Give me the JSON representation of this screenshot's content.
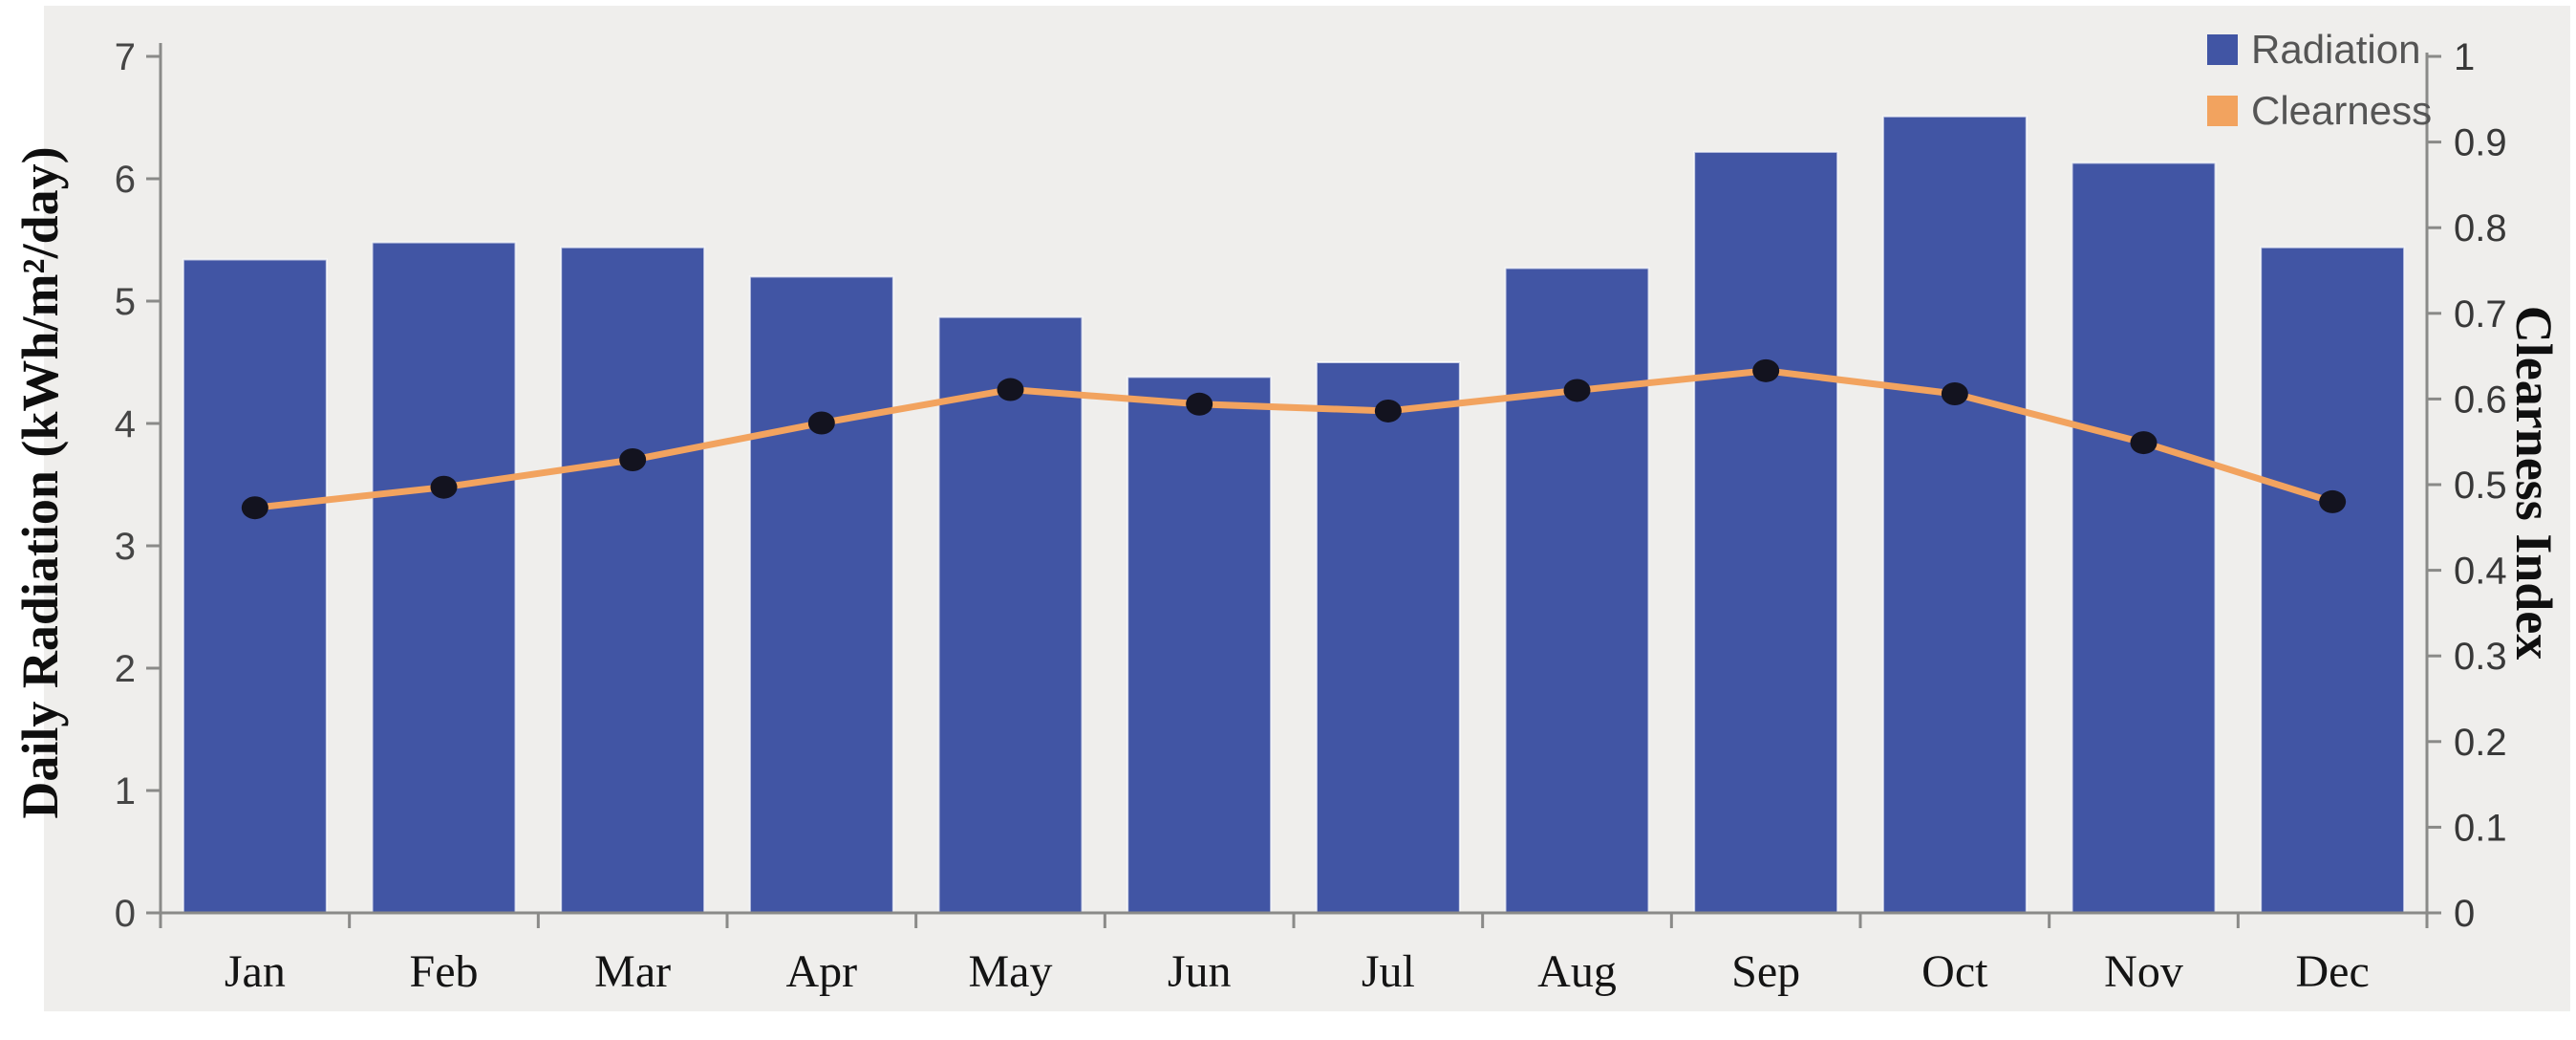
{
  "figure": {
    "background": "#ffffff",
    "panel_background": "#efeeec"
  },
  "legend": {
    "radiation_label": "Radiation",
    "clearness_label": "Clearness"
  },
  "left_axis_title": "Daily Radiation (kWh/m²/day)",
  "right_axis_title": "Clearness Index",
  "colors": {
    "bar": "#4155a4",
    "line": "#f2a35f",
    "marker": "#13131f",
    "axis": "#8a8a88",
    "left_tick_text": "#454545",
    "right_tick_text": "#383838",
    "month_text": "#141414",
    "legend_text": "#555555"
  },
  "chart_data": {
    "type": "bar",
    "subtype": "combo-bar-line-dual-axis",
    "categories": [
      "Jan",
      "Feb",
      "Mar",
      "Apr",
      "May",
      "Jun",
      "Jul",
      "Aug",
      "Sep",
      "Oct",
      "Nov",
      "Dec"
    ],
    "series": [
      {
        "name": "Radiation",
        "type": "bar",
        "axis": "left",
        "color": "#4155a4",
        "values": [
          5.34,
          5.48,
          5.44,
          5.2,
          4.87,
          4.38,
          4.5,
          5.27,
          6.22,
          6.51,
          6.13,
          5.44
        ]
      },
      {
        "name": "Clearness",
        "type": "line",
        "axis": "right",
        "color": "#f2a35f",
        "marker": "circle",
        "marker_color": "#13131f",
        "values": [
          0.473,
          0.497,
          0.529,
          0.572,
          0.611,
          0.594,
          0.586,
          0.61,
          0.633,
          0.606,
          0.549,
          0.48
        ]
      }
    ],
    "left_axis": {
      "label": "Daily Radiation (kWh/m²/day)",
      "min": 0,
      "max": 7,
      "tick_step": 1
    },
    "right_axis": {
      "label": "Clearness Index",
      "min": 0,
      "max": 1,
      "tick_step": 0.1
    },
    "x_axis": {
      "tick_labels": [
        "Jan",
        "Feb",
        "Mar",
        "Apr",
        "May",
        "Jun",
        "Jul",
        "Aug",
        "Sep",
        "Oct",
        "Nov",
        "Dec"
      ]
    },
    "legend_position": "top-right",
    "grid": false
  }
}
